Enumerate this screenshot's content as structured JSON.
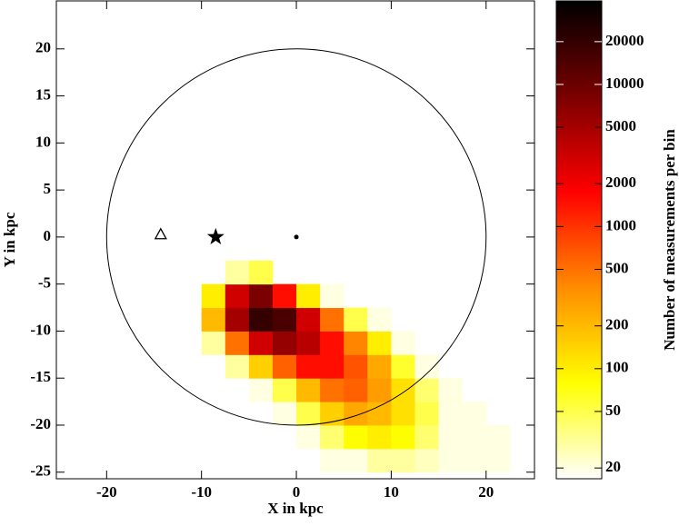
{
  "chart_data": {
    "type": "hist2d",
    "xlabel": "X in kpc",
    "ylabel": "Y in kpc",
    "xlim": [
      -25.3,
      25.1
    ],
    "xticks": [
      -20,
      -10,
      0,
      10,
      20
    ],
    "ylim": [
      -25.7,
      25.1
    ],
    "yticks": [
      -25,
      -20,
      -15,
      -10,
      -5,
      0,
      5,
      10,
      15,
      20
    ],
    "xbins": [
      -10,
      -7.5,
      -5,
      -2.5,
      0,
      2.5,
      5,
      7.5,
      10,
      12.5,
      15,
      17.5,
      20,
      22.5
    ],
    "ybins": [
      -25,
      -22.5,
      -20,
      -17.5,
      -15,
      -12.5,
      -10,
      -7.5,
      -5,
      -2.5
    ],
    "values": [
      [
        null,
        null,
        null,
        null,
        null,
        20,
        20,
        30,
        30,
        25,
        20,
        20,
        20
      ],
      [
        null,
        null,
        null,
        null,
        20,
        40,
        80,
        100,
        80,
        40,
        20,
        20,
        20
      ],
      [
        null,
        null,
        null,
        20,
        50,
        150,
        250,
        200,
        120,
        50,
        20,
        20,
        null
      ],
      [
        null,
        null,
        20,
        50,
        200,
        500,
        600,
        300,
        120,
        40,
        20,
        null,
        null
      ],
      [
        null,
        30,
        150,
        600,
        1500,
        1500,
        700,
        250,
        60,
        20,
        null,
        null,
        null
      ],
      [
        30,
        500,
        3000,
        6000,
        4000,
        1500,
        400,
        100,
        20,
        null,
        null,
        null,
        null
      ],
      [
        200,
        5000,
        20000,
        15000,
        3000,
        500,
        50,
        20,
        null,
        null,
        null,
        null,
        null
      ],
      [
        100,
        3000,
        8000,
        1500,
        100,
        20,
        null,
        null,
        null,
        null,
        null,
        null,
        null
      ],
      [
        null,
        30,
        50,
        null,
        null,
        null,
        null,
        null,
        null,
        null,
        null,
        null,
        null
      ]
    ],
    "colorbar": {
      "label": "Number of measurements per bin",
      "log": true,
      "lim": [
        16.8,
        38700
      ],
      "ticks": [
        20,
        50,
        100,
        200,
        500,
        1000,
        2000,
        5000,
        10000,
        20000
      ],
      "colormap": [
        "#ffffff",
        "#ffff00",
        "#ff8c00",
        "#ff0000",
        "#7a0000",
        "#000000"
      ]
    },
    "circle": {
      "x": 0,
      "y": 0,
      "r": 20
    },
    "points": {
      "x": [
        -14.3,
        -8.5,
        0
      ],
      "y": [
        0.3,
        0,
        0
      ],
      "symbols": [
        "triangle",
        "star",
        "dot"
      ]
    }
  }
}
